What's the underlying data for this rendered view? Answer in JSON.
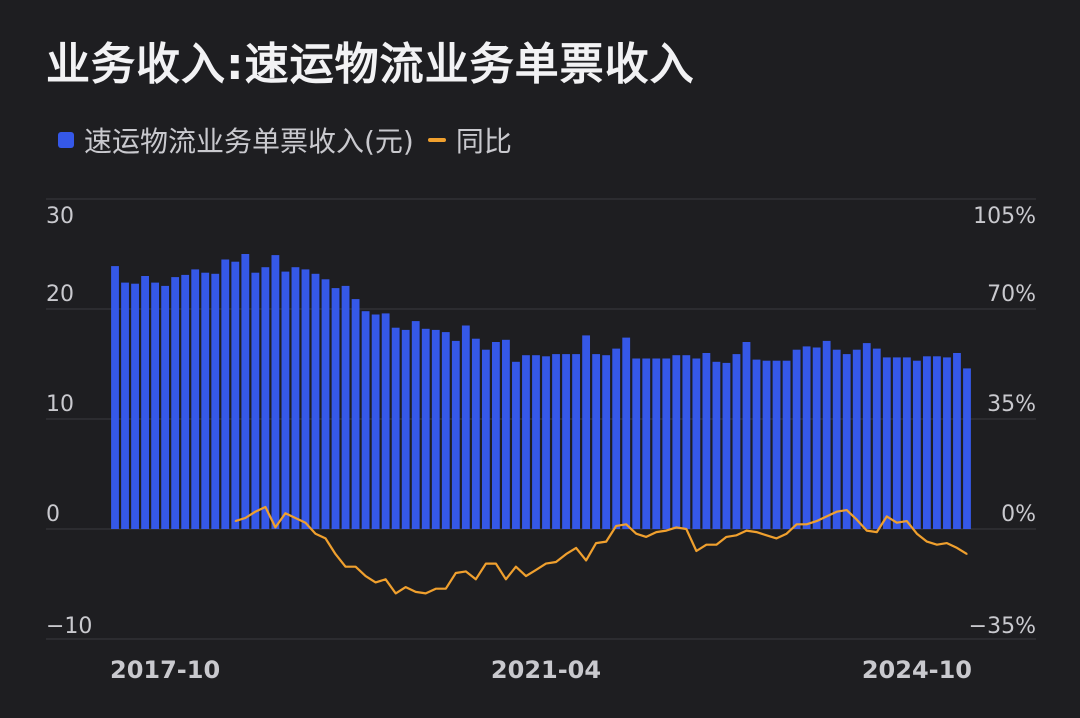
{
  "title": "业务收入:速运物流业务单票收入",
  "chart_data": {
    "type": "bar",
    "x_ticks": [
      "2017-10",
      "2021-04",
      "2024-10"
    ],
    "y_left_ticks": [
      "30",
      "20",
      "10",
      "0",
      "−10"
    ],
    "y_right_ticks": [
      "105%",
      "70%",
      "35%",
      "0%",
      "−35%"
    ],
    "ylim_left": [
      -10,
      30
    ],
    "ylim_right": [
      -35,
      105
    ],
    "grid": true,
    "legend_position": "top-left",
    "series": [
      {
        "name": "速运物流业务单票收入(元)",
        "type": "bar",
        "color": "#3558e8",
        "values": [
          23.9,
          22.4,
          22.3,
          23.0,
          22.4,
          22.1,
          22.9,
          23.1,
          23.6,
          23.3,
          23.2,
          24.5,
          24.3,
          25.0,
          23.3,
          23.8,
          24.9,
          23.4,
          23.8,
          23.6,
          23.2,
          22.7,
          21.9,
          22.1,
          20.9,
          19.8,
          19.5,
          19.6,
          18.3,
          18.1,
          18.9,
          18.2,
          18.1,
          17.9,
          17.1,
          18.5,
          17.3,
          16.3,
          17.0,
          17.2,
          15.2,
          15.8,
          15.8,
          15.7,
          15.9,
          15.9,
          15.9,
          17.6,
          15.9,
          15.8,
          16.4,
          17.4,
          15.5,
          15.5,
          15.5,
          15.5,
          15.8,
          15.8,
          15.5,
          16.0,
          15.2,
          15.1,
          15.9,
          17.0,
          15.4,
          15.3,
          15.3,
          15.3,
          16.3,
          16.6,
          16.5,
          17.1,
          16.3,
          15.9,
          16.3,
          16.9,
          16.4,
          15.6,
          15.6,
          15.6,
          15.3,
          15.7,
          15.7,
          15.6,
          16.0,
          14.6
        ]
      },
      {
        "name": "同比",
        "type": "line",
        "color": "#f0a02e",
        "start_index": 12,
        "values": [
          2.5,
          3.5,
          5.5,
          7,
          0.5,
          5,
          3.5,
          2,
          -1.5,
          -3,
          -8,
          -12,
          -12,
          -15,
          -17,
          -16,
          -20.5,
          -18.5,
          -20,
          -20.5,
          -19,
          -19,
          -14,
          -13.5,
          -16,
          -11,
          -11,
          -16,
          -12,
          -15,
          -13,
          -11,
          -10.5,
          -8,
          -6,
          -10,
          -4.5,
          -4,
          1,
          1.5,
          -1.5,
          -2.5,
          -1,
          -0.5,
          0.5,
          0,
          -7,
          -5,
          -5,
          -2.5,
          -2,
          -0.5,
          -1,
          -2,
          -3,
          -1.5,
          1.5,
          1.5,
          2.5,
          4,
          5.5,
          6,
          3,
          -0.5,
          -1,
          4,
          2,
          2.5,
          -1.5,
          -4,
          -5,
          -4.5,
          -6,
          -8
        ]
      }
    ]
  }
}
